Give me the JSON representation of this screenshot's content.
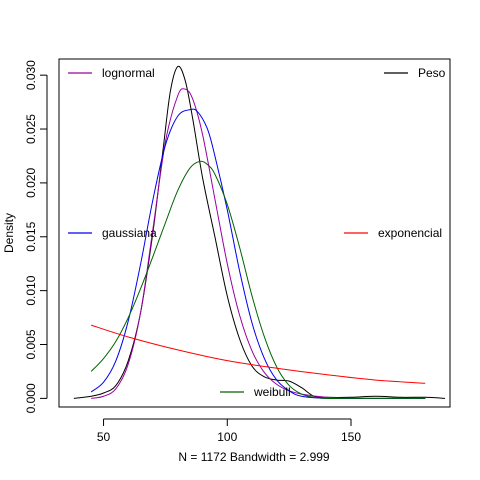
{
  "chart_data": {
    "type": "line",
    "title": "",
    "xlabel": "N = 1172   Bandwidth = 2.999",
    "ylabel": "Density",
    "xlim": [
      32.0,
      190.0
    ],
    "ylim": [
      -0.0008,
      0.0315
    ],
    "x_ticks": [
      50,
      100,
      150
    ],
    "y_ticks": [
      0.0,
      0.005,
      0.01,
      0.015,
      0.02,
      0.025,
      0.03
    ],
    "y_tick_labels": [
      "0.000",
      "0.005",
      "0.010",
      "0.015",
      "0.020",
      "0.025",
      "0.030"
    ],
    "grid": false,
    "series": [
      {
        "name": "Peso",
        "color": "#000000",
        "x": [
          38,
          45,
          50,
          55,
          60,
          65,
          70,
          74,
          77,
          80,
          83,
          86,
          90,
          95,
          100,
          105,
          110,
          115,
          120,
          125,
          130,
          135,
          140,
          150,
          160,
          170,
          180,
          188
        ],
        "y": [
          0.0,
          0.0002,
          0.0005,
          0.0012,
          0.0035,
          0.008,
          0.0155,
          0.023,
          0.0285,
          0.0308,
          0.0295,
          0.026,
          0.0205,
          0.015,
          0.0095,
          0.0055,
          0.003,
          0.002,
          0.0017,
          0.0016,
          0.001,
          0.0002,
          0.0001,
          0.0001,
          0.0002,
          0.0001,
          0.0001,
          0.0
        ]
      },
      {
        "name": "lognormal",
        "color": "#9900a0",
        "x": [
          45,
          50,
          55,
          60,
          65,
          70,
          75,
          80,
          83,
          86,
          90,
          95,
          100,
          105,
          110,
          115,
          120,
          125,
          130,
          140,
          150,
          160,
          170,
          180
        ],
        "y": [
          0.0,
          0.0002,
          0.0009,
          0.0032,
          0.008,
          0.0158,
          0.0238,
          0.0281,
          0.0287,
          0.0278,
          0.0245,
          0.0185,
          0.0125,
          0.0077,
          0.0044,
          0.0024,
          0.0013,
          0.0007,
          0.0004,
          0.0001,
          0.0,
          0.0,
          0.0,
          0.0
        ]
      },
      {
        "name": "gaussiana",
        "color": "#0000ee",
        "x": [
          45,
          50,
          55,
          60,
          65,
          70,
          75,
          80,
          85,
          88,
          92,
          95,
          100,
          105,
          110,
          115,
          120,
          125,
          130,
          140,
          150,
          160,
          170,
          180
        ],
        "y": [
          0.0006,
          0.0015,
          0.0035,
          0.0072,
          0.0125,
          0.0185,
          0.0235,
          0.0262,
          0.0268,
          0.0266,
          0.025,
          0.0225,
          0.0175,
          0.0118,
          0.007,
          0.0037,
          0.0017,
          0.0007,
          0.0002,
          0.0,
          0.0,
          0.0,
          0.0,
          0.0
        ]
      },
      {
        "name": "weibull",
        "color": "#006400",
        "x": [
          45,
          50,
          55,
          60,
          65,
          70,
          75,
          80,
          85,
          89,
          92,
          95,
          100,
          105,
          110,
          115,
          120,
          125,
          130,
          135,
          140,
          150,
          160,
          170,
          180
        ],
        "y": [
          0.0025,
          0.0037,
          0.0053,
          0.0075,
          0.0102,
          0.0132,
          0.0163,
          0.0193,
          0.0214,
          0.022,
          0.0217,
          0.0208,
          0.018,
          0.014,
          0.0095,
          0.0057,
          0.0029,
          0.0012,
          0.0004,
          0.0001,
          0.0,
          0.0,
          0.0,
          0.0,
          0.0
        ]
      },
      {
        "name": "exponencial",
        "color": "#ff0000",
        "x": [
          45,
          60,
          80,
          100,
          120,
          140,
          160,
          180
        ],
        "y": [
          0.0068,
          0.0057,
          0.0045,
          0.0035,
          0.0028,
          0.0022,
          0.0017,
          0.0014
        ]
      }
    ],
    "legend_placement": [
      "top-left",
      "top-right",
      "left",
      "right",
      "bottom"
    ]
  }
}
